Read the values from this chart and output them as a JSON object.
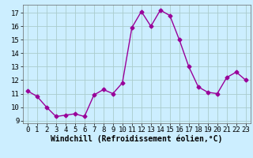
{
  "x": [
    0,
    1,
    2,
    3,
    4,
    5,
    6,
    7,
    8,
    9,
    10,
    11,
    12,
    13,
    14,
    15,
    16,
    17,
    18,
    19,
    20,
    21,
    22,
    23
  ],
  "y": [
    11.2,
    10.8,
    10.0,
    9.3,
    9.4,
    9.5,
    9.3,
    10.9,
    11.3,
    11.0,
    11.8,
    15.9,
    17.1,
    16.0,
    17.2,
    16.8,
    15.0,
    13.0,
    11.5,
    11.1,
    11.0,
    12.2,
    12.6,
    12.0
  ],
  "line_color": "#990099",
  "marker": "D",
  "markersize": 2.5,
  "linewidth": 1.0,
  "xlabel": "Windchill (Refroidissement éolien,°C)",
  "xlabel_fontsize": 7,
  "ylim": [
    8.8,
    17.6
  ],
  "yticks": [
    9,
    10,
    11,
    12,
    13,
    14,
    15,
    16,
    17
  ],
  "xticks": [
    0,
    1,
    2,
    3,
    4,
    5,
    6,
    7,
    8,
    9,
    10,
    11,
    12,
    13,
    14,
    15,
    16,
    17,
    18,
    19,
    20,
    21,
    22,
    23
  ],
  "background_color": "#cceeff",
  "grid_color": "#aacccc",
  "tick_fontsize": 6.5
}
